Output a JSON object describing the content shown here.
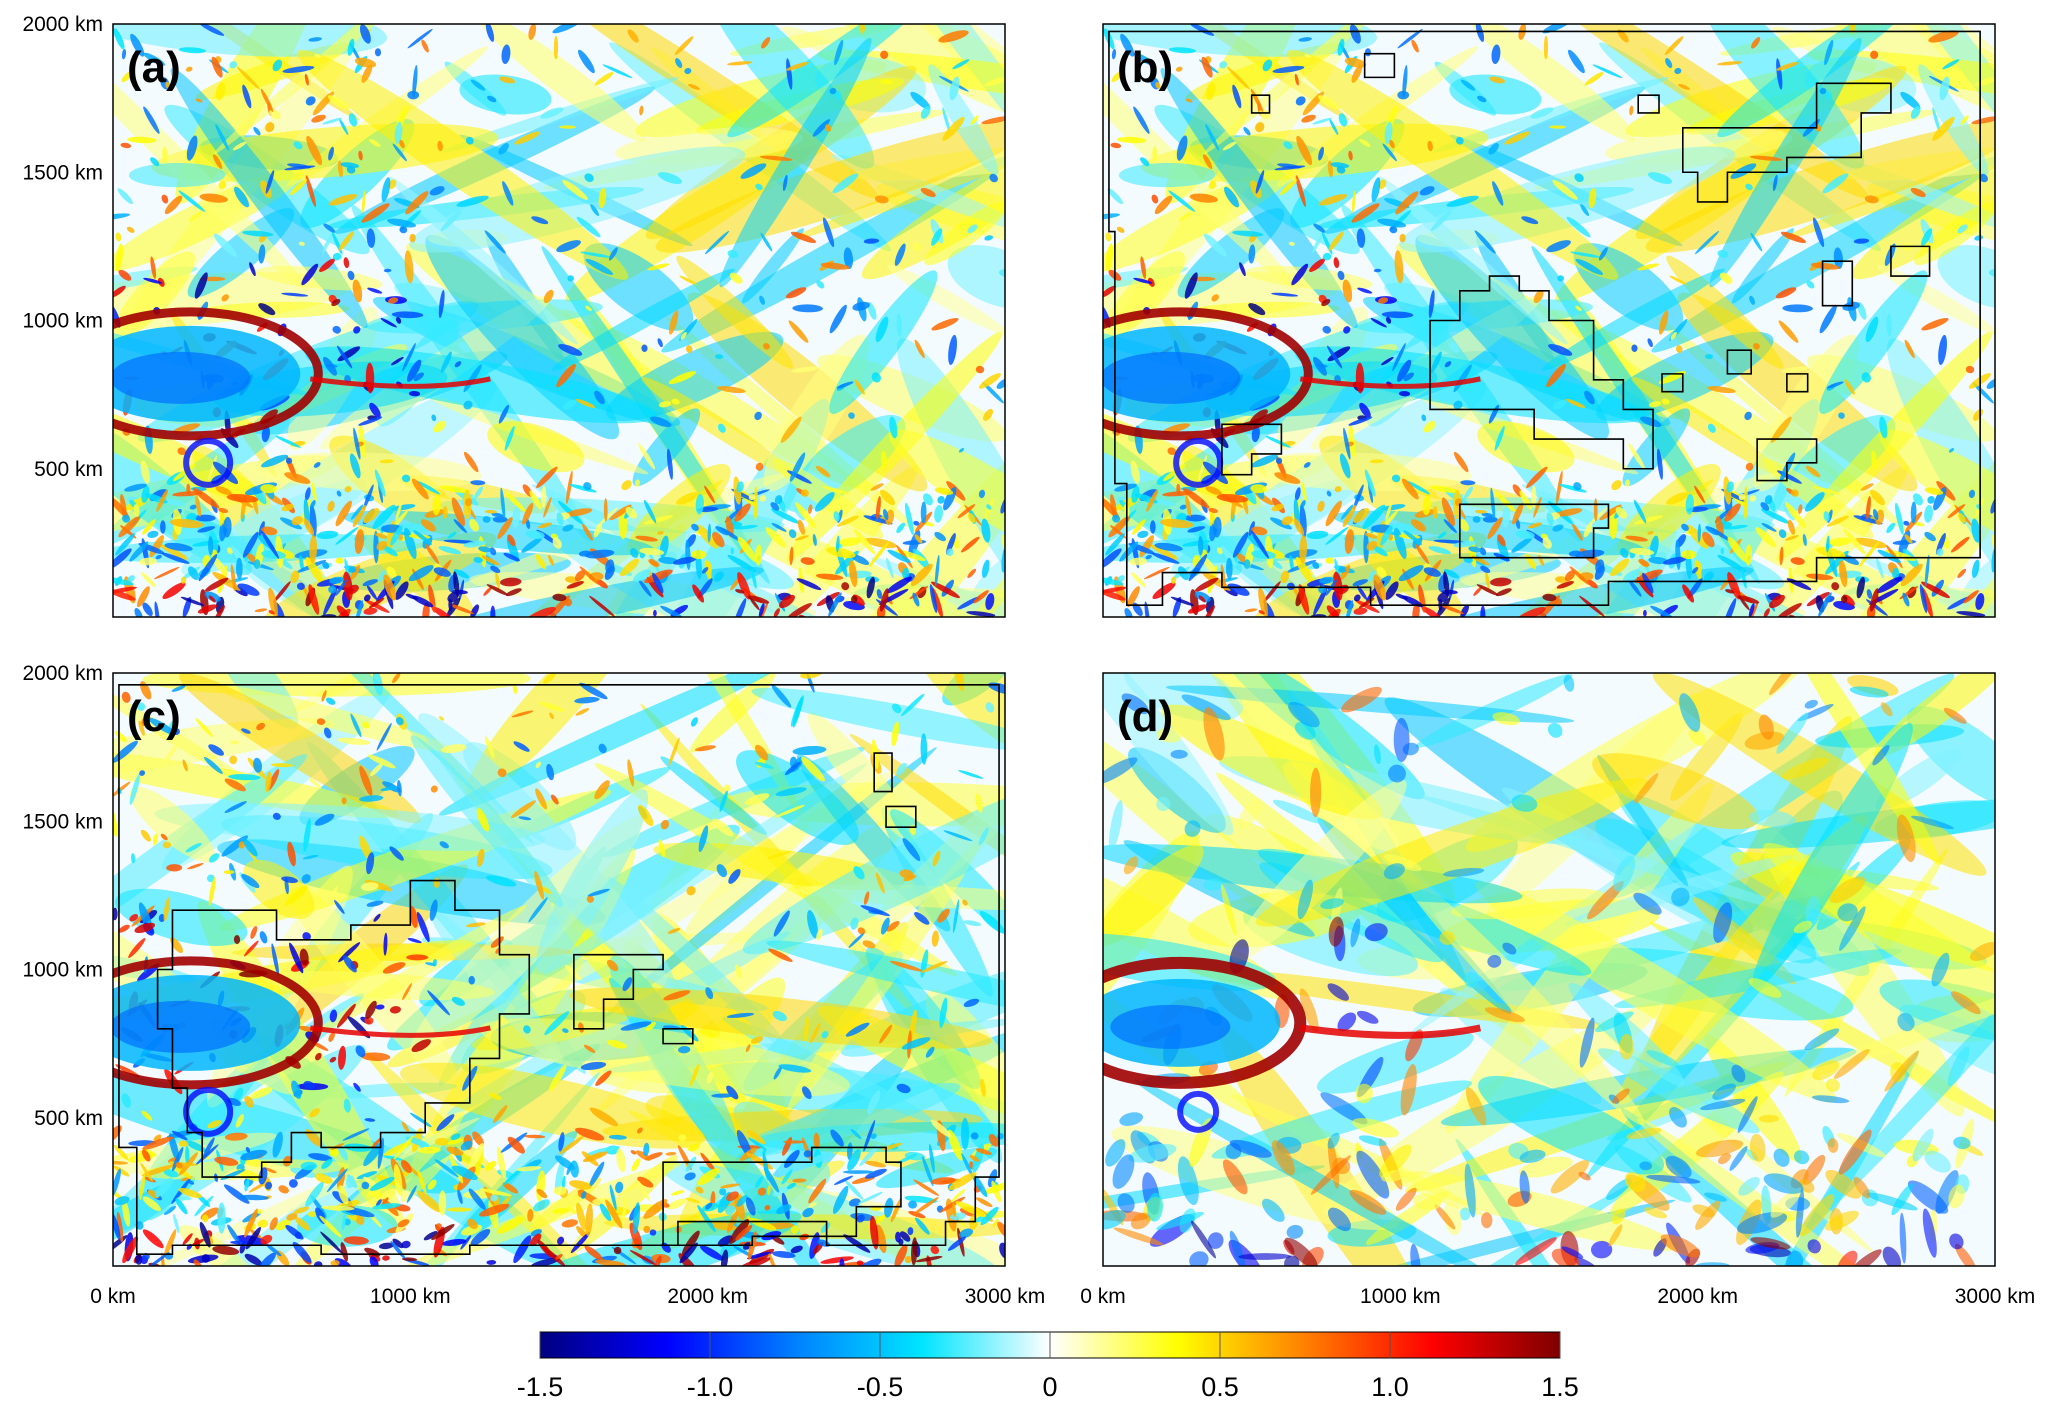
{
  "chart_data": [
    {
      "type": "heatmap",
      "panel_label": "(a)",
      "y_ticks": [
        "2000 km",
        "1500 km",
        "1000 km",
        "500 km"
      ],
      "y_tick_values": [
        2000,
        1500,
        1000,
        500
      ],
      "x_ticks": [],
      "x_tick_values": [],
      "xlim": [
        0,
        3000
      ],
      "ylim": [
        0,
        2000
      ],
      "outlines": false,
      "detail": "fine"
    },
    {
      "type": "heatmap",
      "panel_label": "(b)",
      "y_ticks": [],
      "y_tick_values": [],
      "x_ticks": [],
      "x_tick_values": [],
      "xlim": [
        0,
        3000
      ],
      "ylim": [
        0,
        2000
      ],
      "outlines": true,
      "detail": "fine"
    },
    {
      "type": "heatmap",
      "panel_label": "(c)",
      "y_ticks": [
        "2000 km",
        "1500 km",
        "1000 km",
        "500 km"
      ],
      "y_tick_values": [
        2000,
        1500,
        1000,
        500
      ],
      "x_ticks": [
        "0 km",
        "1000 km",
        "2000 km",
        "3000 km"
      ],
      "x_tick_values": [
        0,
        1000,
        2000,
        3000
      ],
      "xlim": [
        0,
        3000
      ],
      "ylim": [
        0,
        2000
      ],
      "outlines": true,
      "detail": "fine"
    },
    {
      "type": "heatmap",
      "panel_label": "(d)",
      "y_ticks": [],
      "y_tick_values": [],
      "x_ticks": [
        "0 km",
        "1000 km",
        "2000 km",
        "3000 km"
      ],
      "x_tick_values": [
        0,
        1000,
        2000,
        3000
      ],
      "xlim": [
        0,
        3000
      ],
      "ylim": [
        0,
        2000
      ],
      "outlines": false,
      "detail": "coarse"
    }
  ],
  "colorbar": {
    "range": [
      -1.5,
      1.5
    ],
    "ticks": [
      "-1.5",
      "-1.0",
      "-0.5",
      "0",
      "0.5",
      "1.0",
      "1.5"
    ],
    "tick_values": [
      -1.5,
      -1.0,
      -0.5,
      0,
      0.5,
      1.0,
      1.5
    ],
    "colors": [
      "#00007f",
      "#0000ff",
      "#0080ff",
      "#00e5ff",
      "#ffffff",
      "#ffff00",
      "#ff8000",
      "#ff0000",
      "#7f0000"
    ]
  }
}
